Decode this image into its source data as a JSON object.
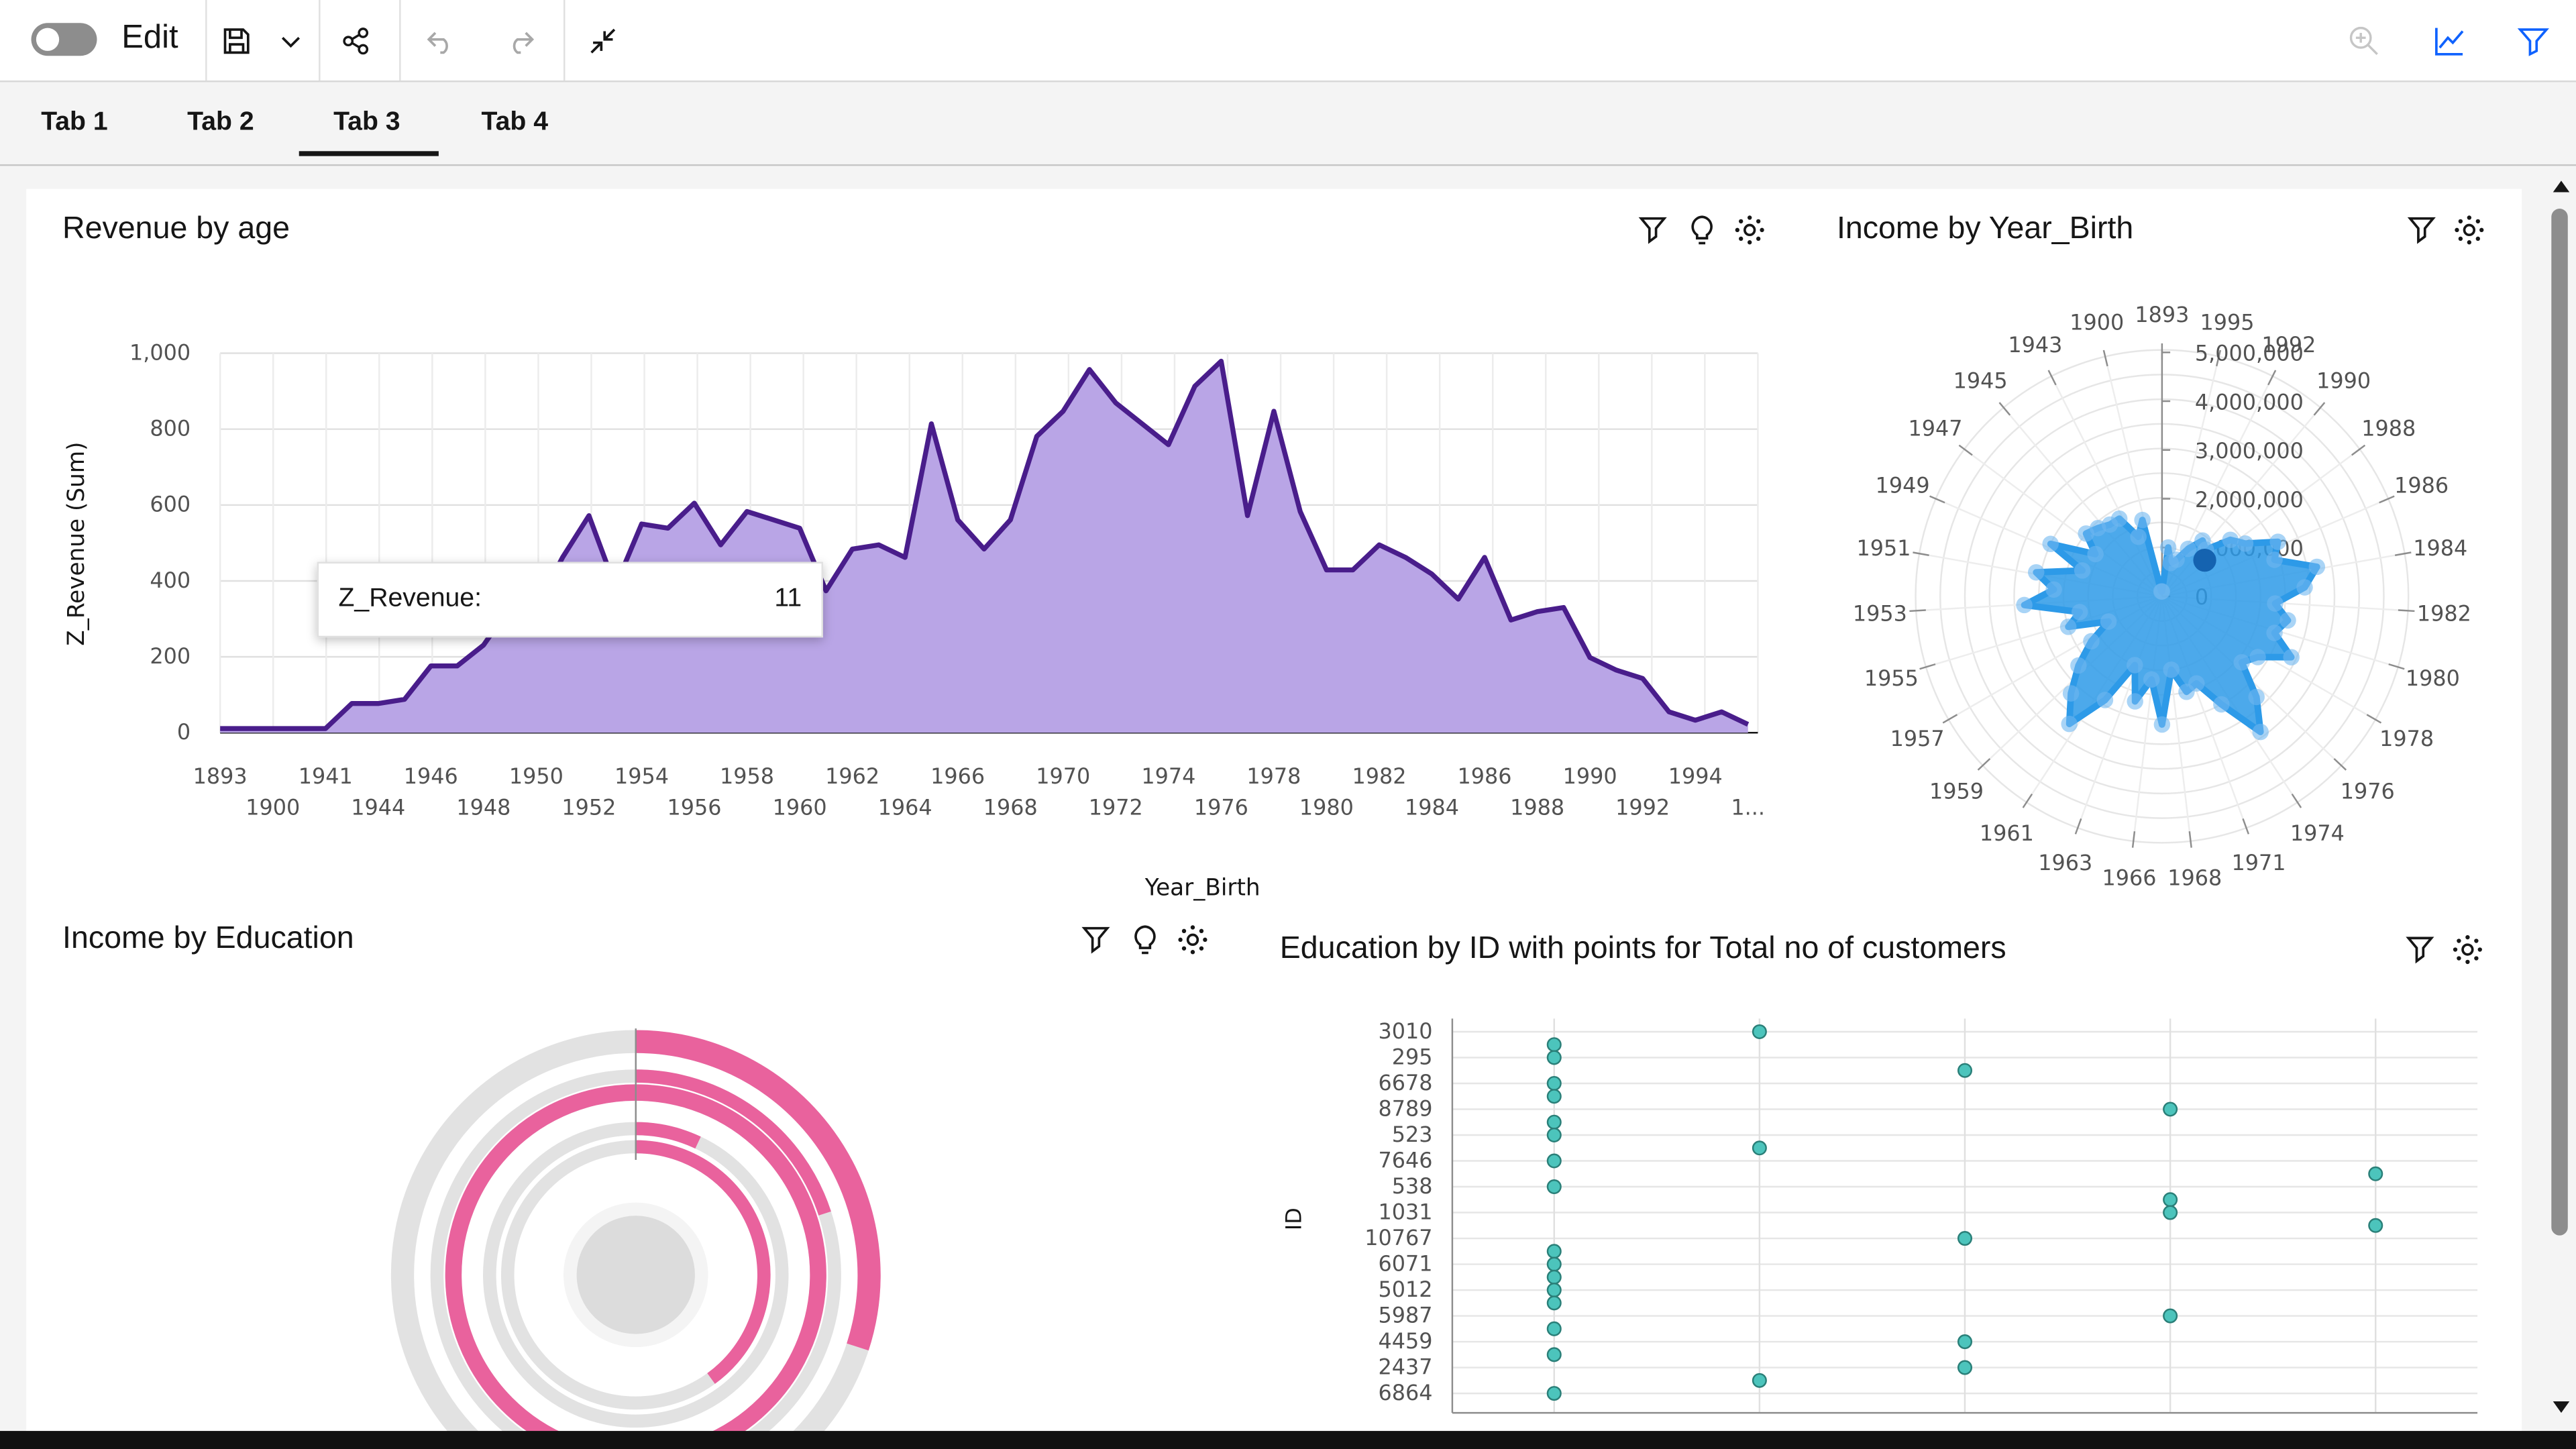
{
  "toolbar": {
    "edit_label": "Edit",
    "icons": [
      "toggle",
      "save-icon",
      "chevron-down-icon",
      "share-icon",
      "undo-icon",
      "redo-icon",
      "collapse-icon",
      "zoom-icon",
      "chart-icon",
      "filter-icon"
    ]
  },
  "tabs": [
    {
      "label": "Tab 1"
    },
    {
      "label": "Tab 2"
    },
    {
      "label": "Tab 3",
      "selected": true
    },
    {
      "label": "Tab 4"
    }
  ],
  "colors": {
    "area_fill": "#b9a5e6",
    "area_line": "#491d8b",
    "radar": "#2d9ae8",
    "sunburst": "#e9629d",
    "sunburst_bg": "#e2e2e2",
    "points": "#4cc4bc"
  },
  "cards": {
    "revenue": {
      "title": "Revenue by age"
    },
    "radar": {
      "title": "Income by Year_Birth"
    },
    "education": {
      "title": "Income by Education"
    },
    "points": {
      "title": "Education by ID with points for Total no of customers"
    }
  },
  "tooltip": {
    "label": "Z_Revenue:",
    "value": "11"
  },
  "chart_data": [
    {
      "type": "area",
      "title": "Revenue by age",
      "xlabel": "Year_Birth",
      "ylabel": "Z_Revenue (Sum)",
      "ylim": [
        0,
        1000
      ],
      "yticks": [
        "0",
        "200",
        "400",
        "600",
        "800",
        "1,000"
      ],
      "xticks_row1": [
        "1893",
        "1941",
        "1946",
        "1950",
        "1954",
        "1958",
        "1962",
        "1966",
        "1970",
        "1974",
        "1978",
        "1982",
        "1986",
        "1990",
        "1994"
      ],
      "xticks_row2": [
        "1900",
        "1944",
        "1948",
        "1952",
        "1956",
        "1960",
        "1964",
        "1968",
        "1972",
        "1976",
        "1980",
        "1984",
        "1988",
        "1992",
        "1..."
      ],
      "values": [
        11,
        11,
        11,
        11,
        11,
        77,
        77,
        88,
        176,
        176,
        231,
        330,
        330,
        462,
        572,
        385,
        550,
        539,
        605,
        495,
        583,
        561,
        539,
        374,
        484,
        495,
        462,
        814,
        561,
        484,
        561,
        781,
        847,
        957,
        869,
        814,
        759,
        913,
        979,
        572,
        847,
        583,
        429,
        429,
        495,
        462,
        418,
        352,
        462,
        297,
        319,
        330,
        198,
        165,
        143,
        55,
        33,
        55,
        22
      ],
      "grid": true
    },
    {
      "type": "radar",
      "title": "Income by Year_Birth",
      "radial_ticks": [
        "0",
        "1,000,000",
        "2,000,000",
        "3,000,000",
        "4,000,000",
        "5,000,000"
      ],
      "rmax": 5000000,
      "angle_labels": [
        "1893",
        "1995",
        "1992",
        "1990",
        "1988",
        "1986",
        "1984",
        "1982",
        "1980",
        "1978",
        "1976",
        "1974",
        "1971",
        "1968",
        "1966",
        "1963",
        "1961",
        "1959",
        "1957",
        "1955",
        "1953",
        "1951",
        "1949",
        "1947",
        "1945",
        "1943",
        "1900"
      ],
      "values": [
        100000,
        1000000,
        700000,
        800000,
        1100000,
        1400000,
        1300000,
        1800000,
        2000000,
        2600000,
        2400000,
        3200000,
        2900000,
        2300000,
        2600000,
        2400000,
        2900000,
        2300000,
        2100000,
        2800000,
        3400000,
        2500000,
        1900000,
        2000000,
        1500000,
        2600000,
        1700000,
        2200000,
        1500000,
        2400000,
        3200000,
        2700000,
        2200000,
        1700000,
        1200000,
        2000000,
        1700000,
        2800000,
        2200000,
        2600000,
        1700000,
        2500000,
        1600000,
        2000000,
        1900000,
        1800000,
        1800000,
        1300000,
        1600000,
        100000
      ],
      "grid": true
    },
    {
      "type": "sunburst",
      "title": "Income by Education",
      "rings": [
        {
          "name": "outer",
          "fraction": 0.3
        },
        {
          "name": "second",
          "fraction": 0.2
        },
        {
          "name": "third",
          "fraction": 1.0
        },
        {
          "name": "fourth",
          "fraction": 0.07
        },
        {
          "name": "inner",
          "fraction": 0.4
        }
      ]
    },
    {
      "type": "scatter",
      "title": "Education by ID with points for Total no of customers",
      "ylabel": "ID",
      "categories": [
        "3010",
        "",
        "295",
        "",
        "6678",
        "",
        "8789",
        "",
        "523",
        "",
        "7646",
        "",
        "538",
        "",
        "1031",
        "",
        "10767",
        "",
        "6071",
        "",
        "5012",
        "",
        "5987",
        "",
        "4459",
        "",
        "2437",
        "",
        "6864",
        ""
      ],
      "points": [
        {
          "row": 0,
          "col": 1
        },
        {
          "row": 1,
          "col": 0
        },
        {
          "row": 2,
          "col": 0
        },
        {
          "row": 3,
          "col": 2
        },
        {
          "row": 4,
          "col": 0
        },
        {
          "row": 5,
          "col": 0
        },
        {
          "row": 6,
          "col": 3
        },
        {
          "row": 7,
          "col": 0
        },
        {
          "row": 8,
          "col": 0
        },
        {
          "row": 9,
          "col": 1
        },
        {
          "row": 10,
          "col": 0
        },
        {
          "row": 11,
          "col": 4
        },
        {
          "row": 12,
          "col": 0
        },
        {
          "row": 13,
          "col": 3
        },
        {
          "row": 14,
          "col": 3
        },
        {
          "row": 15,
          "col": 4
        },
        {
          "row": 16,
          "col": 2
        },
        {
          "row": 17,
          "col": 0
        },
        {
          "row": 18,
          "col": 0
        },
        {
          "row": 19,
          "col": 0
        },
        {
          "row": 20,
          "col": 0
        },
        {
          "row": 21,
          "col": 0
        },
        {
          "row": 22,
          "col": 3
        },
        {
          "row": 23,
          "col": 0
        },
        {
          "row": 25,
          "col": 0
        },
        {
          "row": 24,
          "col": 2
        },
        {
          "row": 26,
          "col": 2
        },
        {
          "row": 27,
          "col": 1
        },
        {
          "row": 28,
          "col": 0
        }
      ],
      "columns": 5,
      "grid": true
    }
  ]
}
